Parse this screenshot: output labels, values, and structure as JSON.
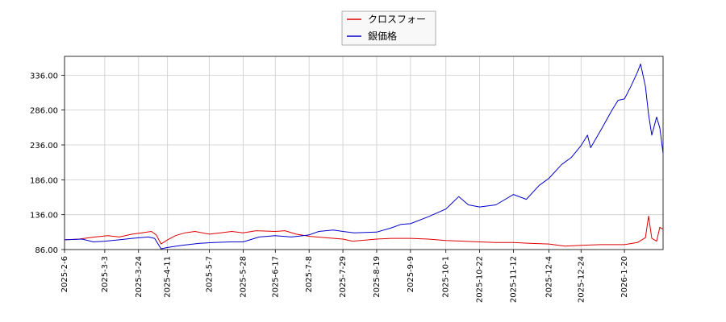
{
  "chart_data": {
    "type": "line",
    "title": "",
    "xlabel": "",
    "ylabel": "",
    "grid": true,
    "legend_position": "top-center",
    "ylim": [
      86,
      363
    ],
    "xlim": [
      "2025-02-06",
      "2026-02-13"
    ],
    "y_ticks": [
      "86.00",
      "136.00",
      "186.00",
      "236.00",
      "286.00",
      "336.00"
    ],
    "x_ticks": [
      "2025-2-6",
      "2025-3-3",
      "2025-3-24",
      "2025-4-11",
      "2025-5-7",
      "2025-5-28",
      "2025-6-17",
      "2025-7-8",
      "2025-7-29",
      "2025-8-19",
      "2025-9-9",
      "2025-10-1",
      "2025-10-22",
      "2025-11-12",
      "2025-12-4",
      "2025-12-24",
      "2026-1-20"
    ],
    "x_tick_dates": [
      "2025-02-06",
      "2025-03-03",
      "2025-03-24",
      "2025-04-11",
      "2025-05-07",
      "2025-05-28",
      "2025-06-17",
      "2025-07-08",
      "2025-07-29",
      "2025-08-19",
      "2025-09-09",
      "2025-10-01",
      "2025-10-22",
      "2025-11-12",
      "2025-12-04",
      "2025-12-24",
      "2026-01-20"
    ],
    "series": [
      {
        "name": "クロスフォー",
        "color": "#dd0000",
        "points": [
          [
            "2025-02-06",
            100
          ],
          [
            "2025-02-15",
            101
          ],
          [
            "2025-02-25",
            104
          ],
          [
            "2025-03-05",
            106
          ],
          [
            "2025-03-12",
            104
          ],
          [
            "2025-03-20",
            108
          ],
          [
            "2025-03-26",
            110
          ],
          [
            "2025-04-01",
            112
          ],
          [
            "2025-04-04",
            107
          ],
          [
            "2025-04-07",
            94
          ],
          [
            "2025-04-11",
            100
          ],
          [
            "2025-04-16",
            106
          ],
          [
            "2025-04-22",
            110
          ],
          [
            "2025-04-28",
            112
          ],
          [
            "2025-05-07",
            108
          ],
          [
            "2025-05-14",
            110
          ],
          [
            "2025-05-21",
            112
          ],
          [
            "2025-05-28",
            110
          ],
          [
            "2025-06-05",
            113
          ],
          [
            "2025-06-17",
            112
          ],
          [
            "2025-06-23",
            113
          ],
          [
            "2025-06-30",
            108
          ],
          [
            "2025-07-08",
            105
          ],
          [
            "2025-07-18",
            103
          ],
          [
            "2025-07-29",
            101
          ],
          [
            "2025-08-04",
            98
          ],
          [
            "2025-08-19",
            101
          ],
          [
            "2025-08-28",
            102
          ],
          [
            "2025-09-09",
            102
          ],
          [
            "2025-09-20",
            101
          ],
          [
            "2025-10-01",
            99
          ],
          [
            "2025-10-12",
            98
          ],
          [
            "2025-10-22",
            97
          ],
          [
            "2025-11-01",
            96
          ],
          [
            "2025-11-12",
            96
          ],
          [
            "2025-11-22",
            95
          ],
          [
            "2025-12-04",
            94
          ],
          [
            "2025-12-14",
            91
          ],
          [
            "2025-12-24",
            92
          ],
          [
            "2026-01-05",
            93
          ],
          [
            "2026-01-20",
            93
          ],
          [
            "2026-01-28",
            96
          ],
          [
            "2026-02-02",
            103
          ],
          [
            "2026-02-04",
            134
          ],
          [
            "2026-02-06",
            102
          ],
          [
            "2026-02-09",
            98
          ],
          [
            "2026-02-11",
            118
          ],
          [
            "2026-02-13",
            115
          ]
        ]
      },
      {
        "name": "銀価格",
        "color": "#0000cc",
        "points": [
          [
            "2025-02-06",
            100
          ],
          [
            "2025-02-17",
            101
          ],
          [
            "2025-02-24",
            97
          ],
          [
            "2025-03-03",
            98
          ],
          [
            "2025-03-12",
            100
          ],
          [
            "2025-03-20",
            102
          ],
          [
            "2025-03-30",
            104
          ],
          [
            "2025-04-03",
            102
          ],
          [
            "2025-04-07",
            87
          ],
          [
            "2025-04-11",
            89
          ],
          [
            "2025-04-20",
            92
          ],
          [
            "2025-05-01",
            95
          ],
          [
            "2025-05-10",
            96
          ],
          [
            "2025-05-20",
            97
          ],
          [
            "2025-05-28",
            97
          ],
          [
            "2025-06-07",
            104
          ],
          [
            "2025-06-17",
            106
          ],
          [
            "2025-06-27",
            104
          ],
          [
            "2025-07-08",
            107
          ],
          [
            "2025-07-14",
            112
          ],
          [
            "2025-07-23",
            114
          ],
          [
            "2025-07-29",
            112
          ],
          [
            "2025-08-05",
            110
          ],
          [
            "2025-08-19",
            111
          ],
          [
            "2025-08-28",
            117
          ],
          [
            "2025-09-03",
            122
          ],
          [
            "2025-09-09",
            123
          ],
          [
            "2025-09-20",
            133
          ],
          [
            "2025-10-01",
            144
          ],
          [
            "2025-10-09",
            162
          ],
          [
            "2025-10-15",
            150
          ],
          [
            "2025-10-22",
            147
          ],
          [
            "2025-11-01",
            150
          ],
          [
            "2025-11-12",
            165
          ],
          [
            "2025-11-20",
            158
          ],
          [
            "2025-11-28",
            178
          ],
          [
            "2025-12-04",
            188
          ],
          [
            "2025-12-12",
            208
          ],
          [
            "2025-12-18",
            218
          ],
          [
            "2025-12-24",
            235
          ],
          [
            "2025-12-28",
            250
          ],
          [
            "2025-12-30",
            232
          ],
          [
            "2026-01-02",
            244
          ],
          [
            "2026-01-06",
            260
          ],
          [
            "2026-01-12",
            285
          ],
          [
            "2026-01-16",
            300
          ],
          [
            "2026-01-20",
            302
          ],
          [
            "2026-01-24",
            320
          ],
          [
            "2026-01-28",
            340
          ],
          [
            "2026-01-30",
            352
          ],
          [
            "2026-02-02",
            320
          ],
          [
            "2026-02-04",
            280
          ],
          [
            "2026-02-06",
            250
          ],
          [
            "2026-02-09",
            276
          ],
          [
            "2026-02-11",
            260
          ],
          [
            "2026-02-13",
            224
          ]
        ]
      }
    ]
  }
}
